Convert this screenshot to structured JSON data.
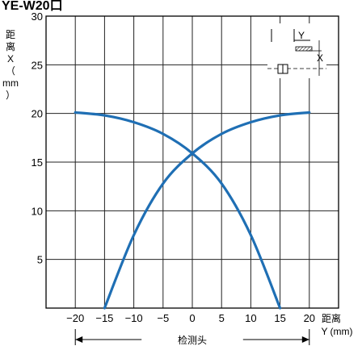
{
  "title": "YE-W20口",
  "chart_data": {
    "type": "line",
    "ylabel": "距离X（mm）",
    "xlabel_top": "距离",
    "xlabel_bottom": "Y (mm)",
    "xlim": [
      -25,
      25
    ],
    "ylim": [
      0,
      30
    ],
    "x_ticks": [
      -20,
      -15,
      -10,
      -5,
      0,
      5,
      10,
      15,
      20
    ],
    "x_tick_labels": [
      "−20",
      "−15",
      "−10",
      "−5",
      "0",
      "5",
      "10",
      "15",
      "20"
    ],
    "y_ticks": [
      5,
      10,
      15,
      20,
      25,
      30
    ],
    "y_tick_labels": [
      "5",
      "10",
      "15",
      "20",
      "25",
      "30"
    ],
    "grid": true,
    "series": [
      {
        "color": "#1f6fb4",
        "x": [
          -20,
          -15,
          -10,
          -5,
          0,
          5,
          10,
          15
        ],
        "y": [
          20.1,
          19.8,
          19.1,
          17.9,
          15.9,
          12.8,
          7.5,
          0
        ]
      },
      {
        "color": "#1f6fb4",
        "x": [
          20,
          15,
          10,
          5,
          0,
          -5,
          -10,
          -15
        ],
        "y": [
          20.1,
          19.8,
          19.1,
          17.9,
          15.9,
          12.8,
          7.5,
          0
        ]
      }
    ],
    "annotation": "检测头",
    "inset_labels": [
      "Y",
      "X"
    ]
  }
}
